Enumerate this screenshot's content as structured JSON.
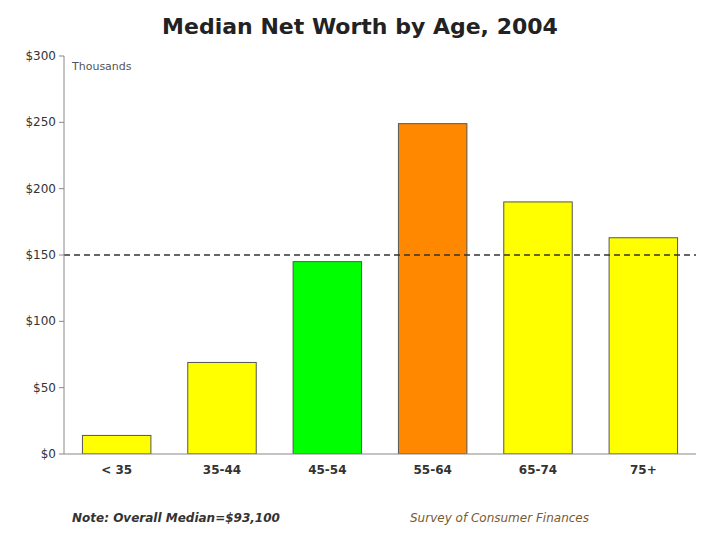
{
  "chart_data": {
    "type": "bar",
    "title": "Median Net Worth by Age, 2004",
    "subtitle": "Thousands",
    "categories": [
      "< 35",
      "35-44",
      "45-54",
      "55-64",
      "65-74",
      "75+"
    ],
    "values": [
      14,
      69,
      145,
      249,
      190,
      163
    ],
    "colors": [
      "#ffff00",
      "#ffff00",
      "#00ff00",
      "#ff8800",
      "#ffff00",
      "#ffff00"
    ],
    "median_line": 150,
    "ylim": [
      0,
      300
    ],
    "yticks": [
      {
        "value": 0,
        "label": "$0"
      },
      {
        "value": 50,
        "label": "$50"
      },
      {
        "value": 100,
        "label": "$100"
      },
      {
        "value": 150,
        "label": "$150"
      },
      {
        "value": 200,
        "label": "$200"
      },
      {
        "value": 250,
        "label": "$250"
      },
      {
        "value": 300,
        "label": "$300"
      }
    ],
    "grid": false,
    "annotations": [
      "Note: Overall Median=$93,100",
      "Survey of Consumer Finances"
    ]
  }
}
